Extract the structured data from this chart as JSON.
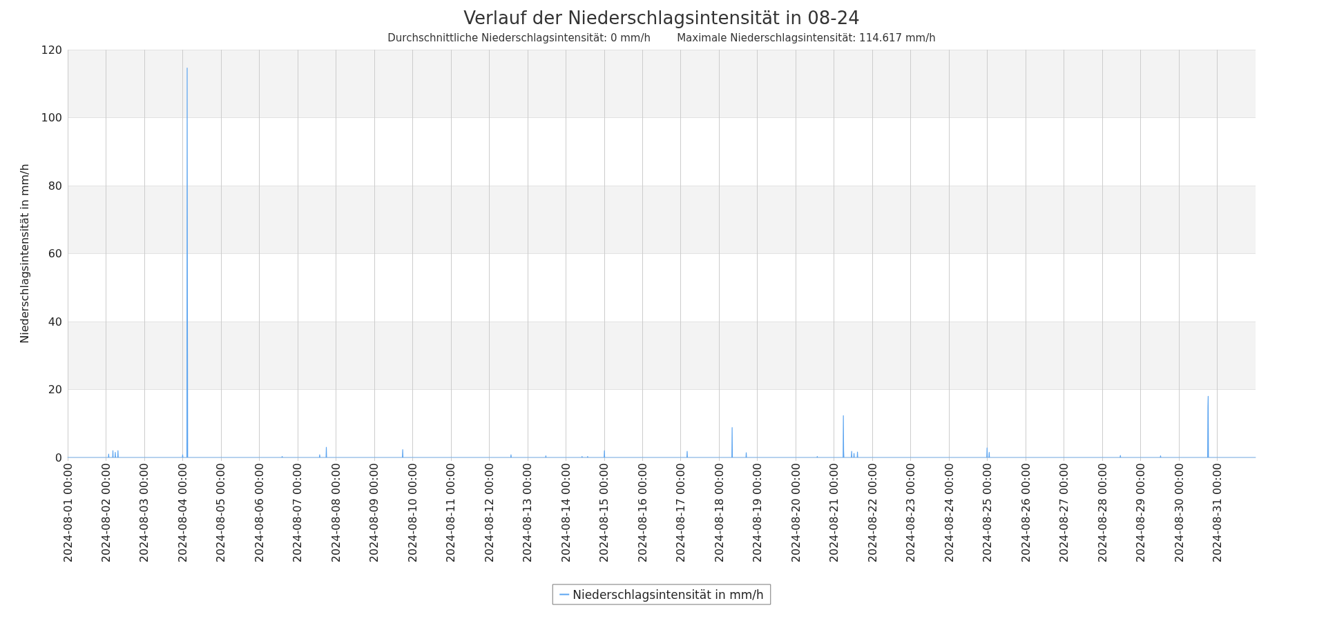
{
  "chart_data": {
    "type": "line",
    "title": "Verlauf der Niederschlagsintensität in 08-24",
    "subtitle": "Durchschnittliche Niederschlagsintensität: 0 mm/h        Maximale Niederschlagsintensität: 114.617 mm/h",
    "ylabel": "Niederschlagsintensität in mm/h",
    "series": [
      {
        "name": "Niederschlagsintensität in mm/h",
        "color": "#5ba4f0",
        "x": [
          "2024-08-01T00:00",
          "2024-08-02T01:30",
          "2024-08-02T01:40",
          "2024-08-02T01:50",
          "2024-08-02T04:10",
          "2024-08-02T04:20",
          "2024-08-02T04:30",
          "2024-08-02T05:40",
          "2024-08-02T05:50",
          "2024-08-02T06:00",
          "2024-08-02T07:20",
          "2024-08-02T07:30",
          "2024-08-02T07:40",
          "2024-08-03T23:50",
          "2024-08-04T00:00",
          "2024-08-04T00:10",
          "2024-08-04T02:40",
          "2024-08-04T02:50",
          "2024-08-04T03:00",
          "2024-08-04T03:10",
          "2024-08-06T14:10",
          "2024-08-06T14:20",
          "2024-08-06T14:30",
          "2024-08-07T13:40",
          "2024-08-07T13:50",
          "2024-08-07T14:00",
          "2024-08-07T17:50",
          "2024-08-07T18:00",
          "2024-08-07T18:10",
          "2024-08-09T17:40",
          "2024-08-09T17:50",
          "2024-08-09T18:00",
          "2024-08-12T13:30",
          "2024-08-12T13:40",
          "2024-08-12T13:50",
          "2024-08-13T11:20",
          "2024-08-13T11:30",
          "2024-08-13T11:40",
          "2024-08-14T10:00",
          "2024-08-14T10:10",
          "2024-08-14T10:20",
          "2024-08-14T13:30",
          "2024-08-14T13:40",
          "2024-08-14T13:50",
          "2024-08-15T00:00",
          "2024-08-15T00:10",
          "2024-08-15T00:20",
          "2024-08-17T03:50",
          "2024-08-17T04:00",
          "2024-08-17T04:10",
          "2024-08-18T08:00",
          "2024-08-18T08:10",
          "2024-08-18T08:20",
          "2024-08-18T16:50",
          "2024-08-18T17:00",
          "2024-08-18T17:10",
          "2024-08-20T13:20",
          "2024-08-20T13:30",
          "2024-08-20T13:40",
          "2024-08-21T05:40",
          "2024-08-21T05:50",
          "2024-08-21T06:00",
          "2024-08-21T06:10",
          "2024-08-21T10:50",
          "2024-08-21T11:00",
          "2024-08-21T11:10",
          "2024-08-21T12:20",
          "2024-08-21T12:30",
          "2024-08-21T12:40",
          "2024-08-21T14:30",
          "2024-08-21T14:40",
          "2024-08-21T14:50",
          "2024-08-24T23:40",
          "2024-08-24T23:50",
          "2024-08-25T00:00",
          "2024-08-25T01:00",
          "2024-08-25T01:10",
          "2024-08-25T01:20",
          "2024-08-28T11:10",
          "2024-08-28T11:20",
          "2024-08-28T11:30",
          "2024-08-29T12:20",
          "2024-08-29T12:30",
          "2024-08-29T12:40",
          "2024-08-30T18:00",
          "2024-08-30T18:10",
          "2024-08-30T18:20",
          "2024-08-30T18:30",
          "2024-09-01T00:00"
        ],
        "values": [
          0,
          0,
          1.0,
          0,
          0,
          2.0,
          0,
          0,
          1.5,
          0,
          0,
          2.0,
          0,
          0,
          0.8,
          0,
          0,
          114.617,
          45,
          0,
          0,
          0.3,
          0,
          0,
          0.8,
          0,
          0,
          3.0,
          0,
          0,
          2.3,
          0,
          0,
          0.8,
          0,
          0,
          0.5,
          0,
          0,
          0.3,
          0,
          0,
          0.3,
          0,
          0,
          2.0,
          0,
          0,
          1.8,
          0,
          0,
          8.8,
          0,
          0,
          1.4,
          0,
          0,
          0.3,
          0,
          0,
          12.3,
          2.0,
          0,
          0,
          1.8,
          0,
          0,
          1.2,
          0,
          0,
          1.6,
          0,
          0,
          2.8,
          0,
          0,
          1.5,
          0,
          0,
          0.6,
          0,
          0,
          0.5,
          0,
          0,
          14.8,
          18.0,
          0,
          0
        ]
      }
    ],
    "xlim": [
      "2024-08-01T00:00",
      "2024-09-01T00:00"
    ],
    "xticks": [
      {
        "value": "2024-08-01T00:00",
        "label": "2024-08-01 00:00"
      },
      {
        "value": "2024-08-02T00:00",
        "label": "2024-08-02 00:00"
      },
      {
        "value": "2024-08-03T00:00",
        "label": "2024-08-03 00:00"
      },
      {
        "value": "2024-08-04T00:00",
        "label": "2024-08-04 00:00"
      },
      {
        "value": "2024-08-05T00:00",
        "label": "2024-08-05 00:00"
      },
      {
        "value": "2024-08-06T00:00",
        "label": "2024-08-06 00:00"
      },
      {
        "value": "2024-08-07T00:00",
        "label": "2024-08-07 00:00"
      },
      {
        "value": "2024-08-08T00:00",
        "label": "2024-08-08 00:00"
      },
      {
        "value": "2024-08-09T00:00",
        "label": "2024-08-09 00:00"
      },
      {
        "value": "2024-08-10T00:00",
        "label": "2024-08-10 00:00"
      },
      {
        "value": "2024-08-11T00:00",
        "label": "2024-08-11 00:00"
      },
      {
        "value": "2024-08-12T00:00",
        "label": "2024-08-12 00:00"
      },
      {
        "value": "2024-08-13T00:00",
        "label": "2024-08-13 00:00"
      },
      {
        "value": "2024-08-14T00:00",
        "label": "2024-08-14 00:00"
      },
      {
        "value": "2024-08-15T00:00",
        "label": "2024-08-15 00:00"
      },
      {
        "value": "2024-08-16T00:00",
        "label": "2024-08-16 00:00"
      },
      {
        "value": "2024-08-17T00:00",
        "label": "2024-08-17 00:00"
      },
      {
        "value": "2024-08-18T00:00",
        "label": "2024-08-18 00:00"
      },
      {
        "value": "2024-08-19T00:00",
        "label": "2024-08-19 00:00"
      },
      {
        "value": "2024-08-20T00:00",
        "label": "2024-08-20 00:00"
      },
      {
        "value": "2024-08-21T00:00",
        "label": "2024-08-21 00:00"
      },
      {
        "value": "2024-08-22T00:00",
        "label": "2024-08-22 00:00"
      },
      {
        "value": "2024-08-23T00:00",
        "label": "2024-08-23 00:00"
      },
      {
        "value": "2024-08-24T00:00",
        "label": "2024-08-24 00:00"
      },
      {
        "value": "2024-08-25T00:00",
        "label": "2024-08-25 00:00"
      },
      {
        "value": "2024-08-26T00:00",
        "label": "2024-08-26 00:00"
      },
      {
        "value": "2024-08-27T00:00",
        "label": "2024-08-27 00:00"
      },
      {
        "value": "2024-08-28T00:00",
        "label": "2024-08-28 00:00"
      },
      {
        "value": "2024-08-29T00:00",
        "label": "2024-08-29 00:00"
      },
      {
        "value": "2024-08-30T00:00",
        "label": "2024-08-30 00:00"
      },
      {
        "value": "2024-08-31T00:00",
        "label": "2024-08-31 00:00"
      }
    ],
    "ylim": [
      0,
      120
    ],
    "yticks": [
      0,
      20,
      40,
      60,
      80,
      100,
      120
    ],
    "grid": true,
    "legend": "bottom"
  }
}
